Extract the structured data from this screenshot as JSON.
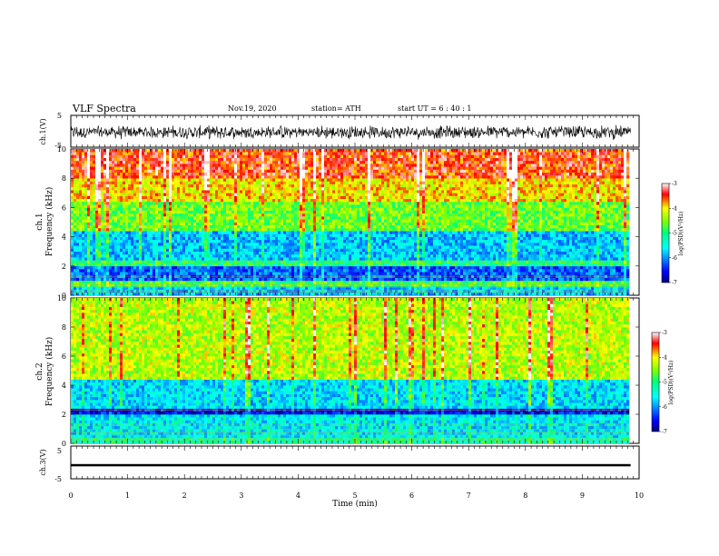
{
  "header": {
    "title": "VLF Spectra",
    "date": "Nov.19, 2020",
    "station": "station= ATH",
    "start": "start  UT =  6 : 40 : 1"
  },
  "chart_data": [
    {
      "type": "line",
      "id": "ch1-waveform",
      "ylabel": "ch.1(V)",
      "ylim": [
        -5,
        5
      ],
      "yticks": [
        "5",
        "-5"
      ],
      "xlim": [
        0,
        10
      ],
      "series": [
        {
          "color": "#000000",
          "x": [
            0,
            9.85
          ],
          "y_range": [
            -3,
            3
          ]
        }
      ]
    },
    {
      "type": "heatmap",
      "id": "ch1-spectrogram",
      "ylabel_line1": "ch.1",
      "ylabel_line2": "Frequency (kHz)",
      "ylim": [
        0,
        10
      ],
      "yticks": [
        "0",
        "2",
        "4",
        "6",
        "8",
        "10"
      ],
      "xlim": [
        0,
        10
      ],
      "data_extent_min": [
        0,
        9.85
      ],
      "colorbar": {
        "label": "log(PSD)(V²/Hz)",
        "range": [
          -7,
          -3
        ],
        "ticks": [
          "-3",
          "-4",
          "-5",
          "-6",
          "-7"
        ]
      },
      "bands": [
        {
          "f": [
            0,
            0.6
          ],
          "value": -5.8
        },
        {
          "f": [
            0.6,
            1.0
          ],
          "value": -4.8
        },
        {
          "f": [
            1.0,
            2.0
          ],
          "value": -6.2
        },
        {
          "f": [
            2.0,
            2.4
          ],
          "value": -5.0
        },
        {
          "f": [
            2.4,
            4.5
          ],
          "value": -5.8
        },
        {
          "f": [
            4.5,
            6.5
          ],
          "value": -4.6
        },
        {
          "f": [
            6.5,
            8.0
          ],
          "value": -4.0
        },
        {
          "f": [
            8.0,
            10.0
          ],
          "value": -3.5
        }
      ]
    },
    {
      "type": "heatmap",
      "id": "ch2-spectrogram",
      "ylabel_line1": "ch.2",
      "ylabel_line2": "Frequency (kHz)",
      "ylim": [
        0,
        10
      ],
      "yticks": [
        "0",
        "2",
        "4",
        "6",
        "8",
        "10"
      ],
      "xlim": [
        0,
        10
      ],
      "data_extent_min": [
        0,
        9.85
      ],
      "colorbar": {
        "label": "log(PSD)(V²/Hz)",
        "range": [
          -7,
          -3
        ],
        "ticks": [
          "-3",
          "-4",
          "-5",
          "-6",
          "-7"
        ]
      },
      "bands": [
        {
          "f": [
            0,
            0.4
          ],
          "value": -5.2
        },
        {
          "f": [
            0.4,
            2.0
          ],
          "value": -5.6
        },
        {
          "f": [
            2.0,
            2.4
          ],
          "value": -6.6
        },
        {
          "f": [
            2.4,
            4.5
          ],
          "value": -5.7
        },
        {
          "f": [
            4.5,
            10.0
          ],
          "value": -4.3
        }
      ]
    },
    {
      "type": "line",
      "id": "ch3-waveform",
      "ylabel": "ch.3(V)",
      "ylim": [
        -5,
        5
      ],
      "yticks": [
        "5",
        "-5"
      ],
      "xlim": [
        0,
        10
      ],
      "xlabel": "Time (min)",
      "xticks": [
        "0",
        "1",
        "2",
        "3",
        "4",
        "5",
        "6",
        "7",
        "8",
        "9",
        "10"
      ],
      "series": [
        {
          "color": "#000000",
          "x": [
            0,
            9.85
          ],
          "y_range": [
            -1.2,
            -0.5
          ]
        }
      ]
    }
  ]
}
